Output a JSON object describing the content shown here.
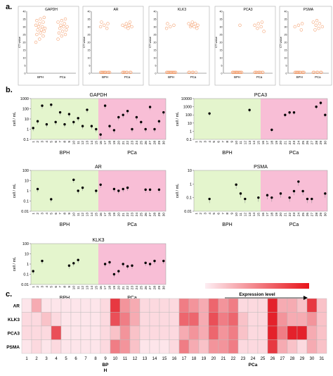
{
  "panel_labels": {
    "a": "a.",
    "b": "b.",
    "c": "c."
  },
  "chart_data": [
    {
      "panel": "a",
      "type": "scatter",
      "title": "GAPDH",
      "ylabel": "CT value",
      "ylim": [
        0,
        40
      ],
      "yticks": [
        0,
        5,
        10,
        15,
        20,
        25,
        30,
        35,
        40
      ],
      "categories": [
        "BPH",
        "PCa"
      ],
      "series": [
        {
          "values": [
            20,
            22,
            24,
            25,
            26,
            27,
            28,
            28,
            29,
            30,
            30,
            31,
            32,
            33,
            34,
            35,
            36
          ]
        },
        {
          "values": [
            22,
            24,
            25,
            26,
            27,
            28,
            29,
            30,
            30,
            31,
            32,
            33,
            34,
            35
          ]
        }
      ]
    },
    {
      "panel": "a",
      "type": "scatter",
      "title": "AR",
      "ylabel": "CT value",
      "ylim": [
        0,
        40
      ],
      "yticks": [
        0,
        5,
        10,
        15,
        20,
        25,
        30,
        35,
        40
      ],
      "categories": [
        "BPH",
        "PCa"
      ],
      "series": [
        {
          "values": [
            0,
            0,
            0,
            0,
            0,
            0,
            0,
            0,
            0,
            0,
            29,
            30,
            31,
            32,
            33
          ]
        },
        {
          "values": [
            0,
            0,
            0,
            0,
            0,
            0,
            0,
            29,
            30,
            30,
            31,
            31,
            32,
            33
          ]
        }
      ]
    },
    {
      "panel": "a",
      "type": "scatter",
      "title": "KLK3",
      "ylabel": "CT value",
      "ylim": [
        0,
        40
      ],
      "yticks": [
        0,
        5,
        10,
        15,
        20,
        25,
        30,
        35,
        40
      ],
      "categories": [
        "BPH",
        "PCa"
      ],
      "series": [
        {
          "values": [
            0,
            0,
            0,
            0,
            0,
            0,
            0,
            0,
            0,
            0,
            0,
            29,
            30,
            31,
            32
          ]
        },
        {
          "values": [
            0,
            0,
            0,
            0,
            0,
            29,
            30,
            30,
            31,
            31,
            32,
            32,
            33
          ]
        }
      ]
    },
    {
      "panel": "a",
      "type": "scatter",
      "title": "PCA3",
      "ylabel": "CT value",
      "ylim": [
        0,
        40
      ],
      "yticks": [
        0,
        5,
        10,
        15,
        20,
        25,
        30,
        35,
        40
      ],
      "categories": [
        "BPH",
        "PCa"
      ],
      "series": [
        {
          "values": [
            0,
            0,
            0,
            0,
            0,
            0,
            0,
            0,
            0,
            0,
            0,
            0,
            0,
            31
          ]
        },
        {
          "values": [
            0,
            0,
            0,
            0,
            0,
            0,
            0,
            0,
            27,
            29,
            30,
            31,
            32,
            33
          ]
        }
      ]
    },
    {
      "panel": "a",
      "type": "scatter",
      "title": "PSMA",
      "ylabel": "CT value",
      "ylim": [
        0,
        40
      ],
      "yticks": [
        0,
        5,
        10,
        15,
        20,
        25,
        30,
        35,
        40
      ],
      "categories": [
        "BPH",
        "PCa"
      ],
      "series": [
        {
          "values": [
            0,
            0,
            0,
            0,
            0,
            0,
            0,
            0,
            0,
            0,
            28,
            30,
            31,
            32
          ]
        },
        {
          "values": [
            0,
            0,
            0,
            0,
            0,
            0,
            28,
            29,
            30,
            31,
            32,
            33,
            34
          ]
        }
      ]
    },
    {
      "panel": "b",
      "type": "scatter",
      "title": "GAPDH",
      "ylabel": "cell / mL",
      "yscale": "log",
      "ylim": [
        0.1,
        1000
      ],
      "yticks": [
        "0.1",
        "1",
        "10",
        "100",
        "1000"
      ],
      "x": [
        "1",
        "2",
        "3",
        "4",
        "5",
        "6",
        "7",
        "8",
        "9",
        "10",
        "11",
        "12",
        "13",
        "14",
        "15",
        "16",
        "17",
        "18",
        "19",
        "20",
        "21",
        "22",
        "23",
        "24",
        "25",
        "26",
        "27",
        "28",
        "29",
        "30"
      ],
      "regions": [
        "BPH",
        "PCa"
      ],
      "region_split": 15,
      "values": [
        1.3,
        6,
        200,
        3,
        250,
        5,
        45,
        3,
        30,
        5,
        12,
        2,
        80,
        2,
        1,
        0.3,
        200,
        2,
        0.8,
        15,
        25,
        60,
        1,
        15,
        5,
        1,
        150,
        1,
        6,
        45
      ],
      "err": [
        0,
        0,
        0,
        0,
        0,
        0,
        0,
        0,
        0,
        0,
        0,
        0,
        0,
        0,
        0,
        0.6,
        0,
        0,
        0,
        0,
        0,
        0,
        0,
        0,
        0,
        0,
        0,
        0,
        0,
        0
      ]
    },
    {
      "panel": "b",
      "type": "scatter",
      "title": "PCA3",
      "ylabel": "cell / mL",
      "yscale": "log",
      "ylim": [
        0.1,
        10000
      ],
      "yticks": [
        "0.1",
        "1",
        "10",
        "100",
        "1000",
        "10000"
      ],
      "x": [
        "1",
        "2",
        "3",
        "4",
        "5",
        "6",
        "7",
        "8",
        "9",
        "10",
        "11",
        "12",
        "13",
        "14",
        "15",
        "16",
        "17",
        "18",
        "19",
        "20",
        "21",
        "22",
        "23",
        "24",
        "25",
        "26",
        "27",
        "28",
        "29",
        "30"
      ],
      "regions": [
        "BPH",
        "PCa"
      ],
      "region_split": 15,
      "values": [
        null,
        null,
        null,
        150,
        null,
        null,
        null,
        null,
        null,
        null,
        null,
        null,
        400,
        null,
        null,
        null,
        null,
        1.5,
        null,
        null,
        100,
        200,
        200,
        null,
        null,
        null,
        null,
        1000,
        3000,
        100
      ],
      "err": [
        0,
        0,
        0,
        0,
        0,
        0,
        0,
        0,
        0,
        0,
        0,
        0,
        0,
        0,
        0,
        0,
        0,
        0,
        0,
        0,
        0,
        0,
        0,
        0,
        0,
        0,
        0,
        0,
        0,
        0
      ]
    },
    {
      "panel": "b",
      "type": "scatter",
      "title": "AR",
      "ylabel": "cell / mL",
      "yscale": "log",
      "ylim": [
        0.01,
        100
      ],
      "yticks": [
        "0.01",
        "0.1",
        "1",
        "10",
        "100"
      ],
      "x": [
        "1",
        "2",
        "3",
        "4",
        "5",
        "6",
        "7",
        "8",
        "9",
        "10",
        "11",
        "12",
        "13",
        "14",
        "15",
        "16",
        "17",
        "18",
        "19",
        "20",
        "21",
        "22",
        "23",
        "24",
        "25",
        "26",
        "27",
        "28",
        "29",
        "30"
      ],
      "regions": [
        "BPH",
        "PCa"
      ],
      "region_split": 15,
      "values": [
        null,
        1.5,
        null,
        null,
        0.15,
        null,
        null,
        null,
        null,
        12,
        1,
        2,
        null,
        null,
        1,
        4,
        null,
        null,
        1.5,
        1,
        1.5,
        2,
        null,
        null,
        null,
        1.3,
        1.3,
        null,
        1.3,
        null
      ],
      "err": [
        0,
        0,
        0,
        0,
        0,
        0,
        0,
        0,
        0,
        0,
        0,
        0,
        0,
        0,
        0,
        0,
        0,
        0,
        0,
        0,
        0,
        0,
        0,
        0,
        0,
        0,
        0,
        0,
        0,
        0
      ]
    },
    {
      "panel": "b",
      "type": "scatter",
      "title": "PSMA",
      "ylabel": "cell / mL",
      "yscale": "log",
      "ylim": [
        0.01,
        10
      ],
      "yticks": [
        "0.01",
        "0.1",
        "1",
        "10"
      ],
      "x": [
        "1",
        "2",
        "3",
        "4",
        "5",
        "6",
        "7",
        "8",
        "9",
        "10",
        "11",
        "12",
        "13",
        "14",
        "15",
        "16",
        "17",
        "18",
        "19",
        "20",
        "21",
        "22",
        "23",
        "24",
        "25",
        "26",
        "27",
        "28",
        "29",
        "30"
      ],
      "regions": [
        "BPH",
        "PCa"
      ],
      "region_split": 15,
      "values": [
        null,
        null,
        null,
        0.08,
        null,
        null,
        null,
        null,
        null,
        0.9,
        0.2,
        0.08,
        null,
        null,
        0.1,
        null,
        0.15,
        0.1,
        null,
        0.2,
        null,
        0.1,
        0.3,
        1.5,
        0.3,
        0.08,
        0.08,
        null,
        null,
        0.2
      ],
      "err": [
        0,
        0,
        0,
        0,
        0,
        0,
        0,
        0,
        0,
        0,
        0,
        0,
        0,
        0,
        0,
        0,
        0,
        0,
        0,
        0,
        0,
        0,
        0,
        0,
        0,
        0,
        0,
        0,
        0,
        0
      ]
    },
    {
      "panel": "b",
      "type": "scatter",
      "title": "KLK3",
      "ylabel": "cell / mL",
      "yscale": "log",
      "ylim": [
        0.01,
        100
      ],
      "yticks": [
        "0.01",
        "0.1",
        "1",
        "10",
        "100"
      ],
      "x": [
        "1",
        "2",
        "3",
        "4",
        "5",
        "6",
        "7",
        "8",
        "9",
        "10",
        "11",
        "12",
        "13",
        "14",
        "15",
        "16",
        "17",
        "18",
        "19",
        "20",
        "21",
        "22",
        "23",
        "24",
        "25",
        "26",
        "27",
        "28",
        "29",
        "30"
      ],
      "regions": [
        "BPH",
        "PCa"
      ],
      "region_split": 15,
      "values": [
        0.2,
        null,
        2,
        null,
        null,
        null,
        null,
        null,
        0.7,
        1.2,
        2.5,
        null,
        null,
        null,
        null,
        null,
        1,
        1.5,
        0.1,
        0.2,
        1,
        0.6,
        0.7,
        null,
        null,
        1.3,
        1,
        2,
        null,
        2
      ],
      "err": [
        0,
        0,
        0,
        0,
        0,
        0,
        0,
        0,
        0,
        0,
        0,
        0,
        0,
        0,
        0,
        0,
        0,
        0,
        0,
        0,
        0,
        0,
        0,
        0,
        0,
        0,
        0,
        0,
        0,
        0
      ]
    },
    {
      "panel": "c",
      "type": "heatmap",
      "legend_label": "Expression level",
      "rows": [
        "AR",
        "KLK3",
        "PCA3",
        "PSMA"
      ],
      "columns": [
        "1",
        "2",
        "3",
        "4",
        "5",
        "6",
        "7",
        "8",
        "9",
        "10",
        "11",
        "12",
        "13",
        "14",
        "15",
        "16",
        "17",
        "18",
        "19",
        "20",
        "21",
        "22",
        "23",
        "24",
        "25",
        "26",
        "27",
        "28",
        "29",
        "30",
        "31"
      ],
      "xgroup_labels": {
        "bph": "BP\nH",
        "pca": "PCa"
      },
      "values": [
        [
          0.05,
          0.3,
          0.05,
          0.05,
          0.05,
          0.05,
          0.05,
          0.05,
          0.1,
          0.8,
          0.4,
          0.3,
          0.1,
          0.1,
          0.1,
          0.1,
          0.5,
          0.4,
          0.3,
          0.6,
          0.4,
          0.5,
          0.1,
          0.1,
          0.1,
          0.9,
          0.3,
          0.3,
          0.2,
          0.8,
          0.2
        ],
        [
          0.1,
          0.1,
          0.2,
          0.1,
          0.05,
          0.05,
          0.05,
          0.05,
          0.1,
          0.7,
          0.5,
          0.3,
          0.1,
          0.1,
          0.1,
          0.1,
          0.6,
          0.6,
          0.3,
          0.7,
          0.5,
          0.6,
          0.2,
          0.1,
          0.1,
          0.9,
          0.4,
          0.3,
          0.3,
          0.4,
          0.2
        ],
        [
          0.1,
          0.1,
          0.1,
          0.7,
          0.05,
          0.05,
          0.05,
          0.05,
          0.1,
          0.2,
          0.4,
          0.2,
          0.1,
          0.1,
          0.1,
          0.1,
          0.3,
          0.4,
          0.3,
          0.6,
          0.4,
          0.5,
          0.2,
          0.1,
          0.1,
          0.9,
          0.5,
          0.9,
          0.9,
          0.3,
          0.2
        ],
        [
          0.05,
          0.1,
          0.05,
          0.1,
          0.05,
          0.05,
          0.05,
          0.05,
          0.1,
          0.5,
          0.4,
          0.2,
          0.05,
          0.05,
          0.05,
          0.1,
          0.5,
          0.3,
          0.2,
          0.4,
          0.4,
          0.5,
          0.1,
          0.1,
          0.1,
          0.8,
          0.3,
          0.2,
          0.1,
          0.3,
          0.2
        ]
      ]
    }
  ]
}
